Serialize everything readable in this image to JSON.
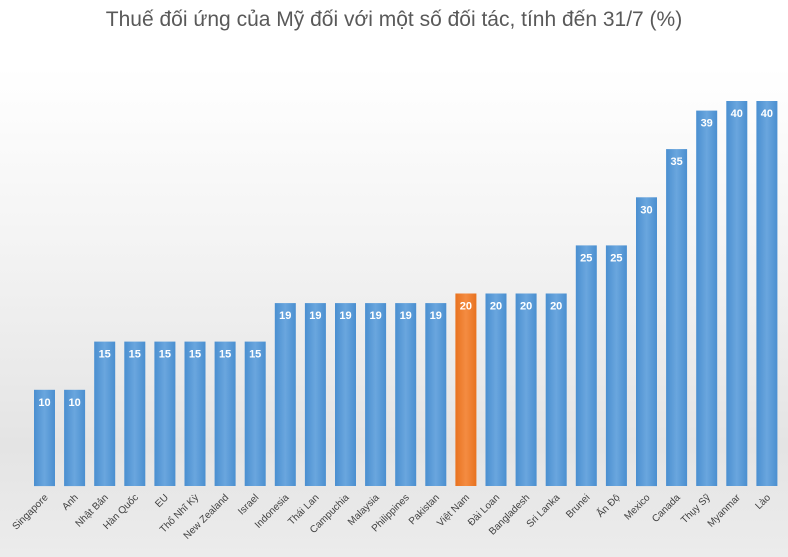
{
  "chart_data": {
    "type": "bar",
    "title": "Thuế đối ứng của Mỹ đối với một số đối tác, tính đến 31/7 (%)",
    "xlabel": "",
    "ylabel": "",
    "ylim": [
      0,
      40
    ],
    "grid": false,
    "legend": "none",
    "categories": [
      "Singapore",
      "Anh",
      "Nhật Bản",
      "Hàn Quốc",
      "EU",
      "Thổ Nhĩ Kỳ",
      "New Zealand",
      "Israel",
      "Indonesia",
      "Thái Lan",
      "Campuchia",
      "Malaysia",
      "Philippines",
      "Pakistan",
      "Việt Nam",
      "Đài Loan",
      "Bangladesh",
      "Sri Lanka",
      "Brunei",
      "Ấn Độ",
      "Mexico",
      "Canada",
      "Thụy Sỹ",
      "Myanmar",
      "Lào"
    ],
    "values": [
      10,
      10,
      15,
      15,
      15,
      15,
      15,
      15,
      19,
      19,
      19,
      19,
      19,
      19,
      20,
      20,
      20,
      20,
      25,
      25,
      30,
      35,
      39,
      40,
      40
    ],
    "highlight_index": 14,
    "colors": {
      "bar": "#5b9bd5",
      "bar_light": "#6fa8dc",
      "bar_dark": "#3f85c8",
      "highlight": "#ed7d31",
      "highlight_light": "#f08a43",
      "label": "#ffffff",
      "tick_label": "#404040"
    }
  }
}
